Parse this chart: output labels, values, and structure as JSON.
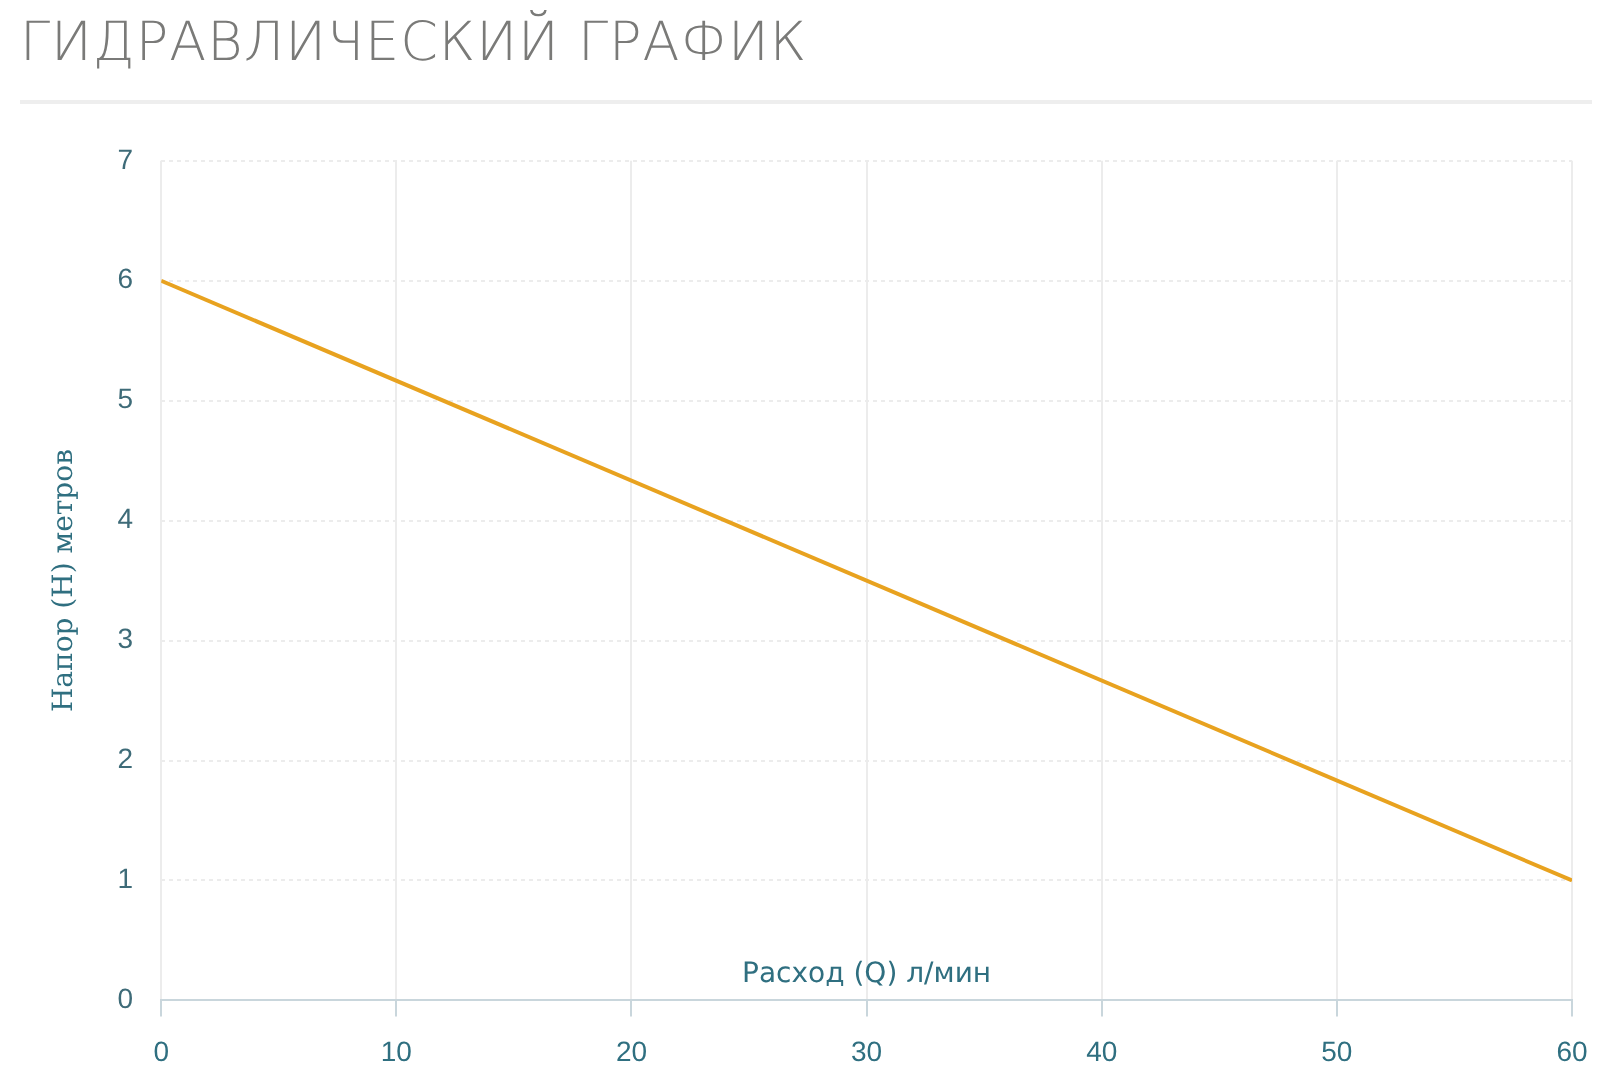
{
  "chart_data": {
    "type": "line",
    "title": "ГИДРАВЛИЧЕСКИЙ ГРАФИК",
    "xlabel": "Расход (Q) л/мин",
    "ylabel": "Напор (H) метров",
    "x": [
      0,
      60
    ],
    "series": [
      {
        "color": "#e8a21f",
        "values": [
          6,
          1
        ]
      }
    ],
    "xlim": [
      0,
      60
    ],
    "xticks": [
      0,
      10,
      20,
      30,
      40,
      50,
      60
    ],
    "ylim": [
      0,
      7
    ],
    "yticks": [
      0,
      1,
      2,
      3,
      4,
      5,
      6,
      7
    ],
    "grid": true,
    "legend": false,
    "marker": "none",
    "line_style": "solid"
  }
}
